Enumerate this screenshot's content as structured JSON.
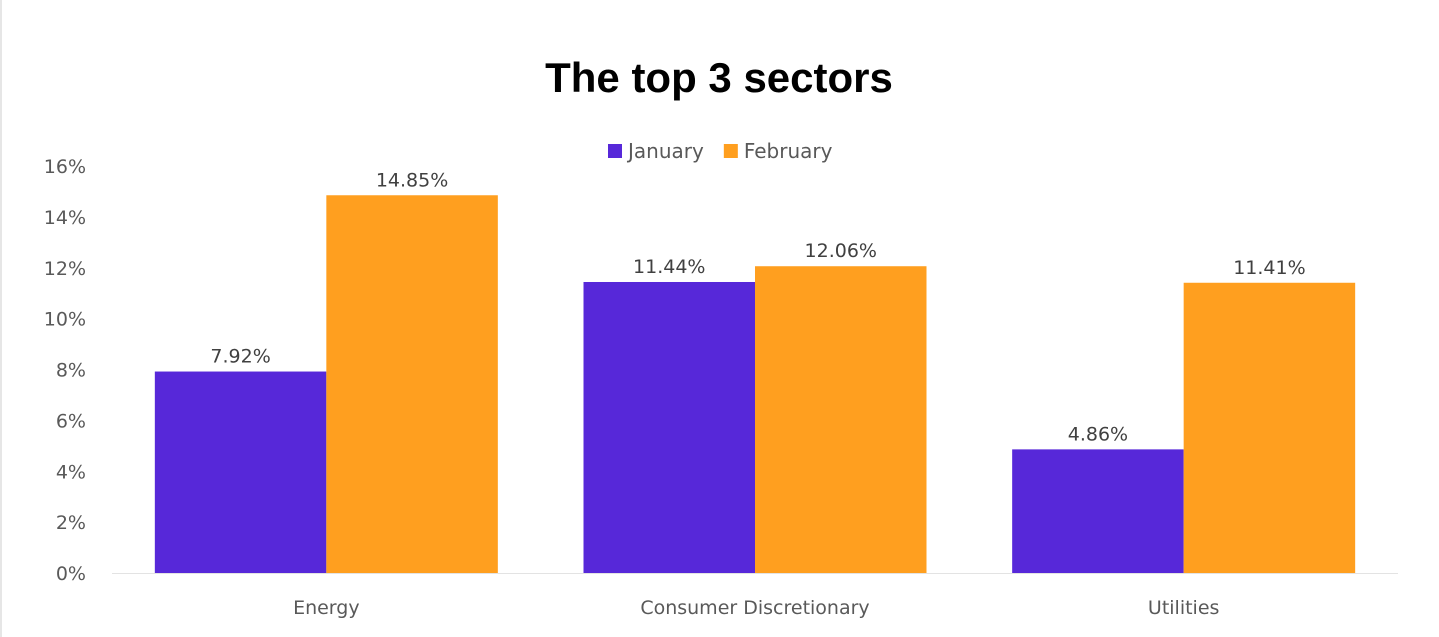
{
  "chart_data": {
    "type": "bar",
    "title": "The top 3 sectors",
    "xlabel": "",
    "ylabel": "",
    "categories": [
      "Energy",
      "Consumer Discretionary",
      "Utilities"
    ],
    "series": [
      {
        "name": "January",
        "color": "#5728d9",
        "values": [
          7.92,
          11.44,
          4.86
        ],
        "labels": [
          "7.92%",
          "11.44%",
          "4.86%"
        ]
      },
      {
        "name": "February",
        "color": "#ff9f1f",
        "values": [
          14.85,
          12.06,
          11.41
        ],
        "labels": [
          "14.85%",
          "12.06%",
          "11.41%"
        ]
      }
    ],
    "ylim": [
      0,
      16
    ],
    "yticks": [
      0,
      2,
      4,
      6,
      8,
      10,
      12,
      14,
      16
    ],
    "ytick_labels": [
      "0%",
      "2%",
      "4%",
      "6%",
      "8%",
      "10%",
      "12%",
      "14%",
      "16%"
    ],
    "grid": false,
    "legend_position": "top-center"
  }
}
